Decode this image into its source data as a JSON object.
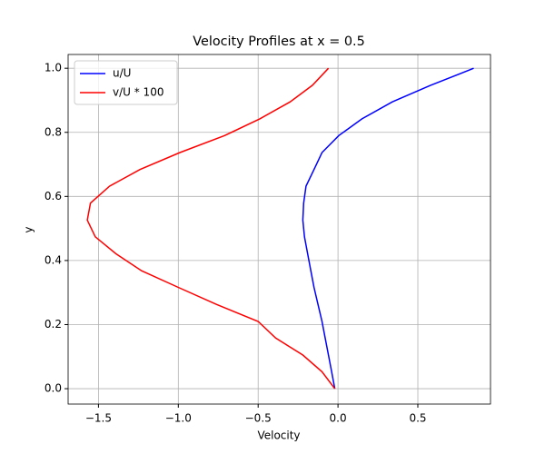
{
  "chart_data": {
    "type": "line",
    "title": "Velocity Profiles at x = 0.5",
    "x_label": "Velocity",
    "y_label": "y",
    "series": [
      {
        "name": "u/U",
        "color": "#0000ff",
        "x": [
          -0.02,
          -0.04,
          -0.06,
          -0.08,
          -0.1,
          -0.125,
          -0.15,
          -0.17,
          -0.19,
          -0.21,
          -0.22,
          -0.215,
          -0.2,
          -0.15,
          -0.1,
          0.005,
          0.15,
          0.34,
          0.58,
          0.85
        ],
        "values": [
          0,
          0.053,
          0.105,
          0.158,
          0.21,
          0.263,
          0.316,
          0.368,
          0.421,
          0.474,
          0.526,
          0.579,
          0.632,
          0.684,
          0.737,
          0.79,
          0.842,
          0.895,
          0.947,
          1.0
        ]
      },
      {
        "name": "v/U * 100",
        "color": "#ff0000",
        "x": [
          -0.02,
          -0.1,
          -0.22,
          -0.39,
          -0.5,
          -0.76,
          -1.0,
          -1.23,
          -1.39,
          -1.52,
          -1.57,
          -1.55,
          -1.43,
          -1.24,
          -0.99,
          -0.71,
          -0.49,
          -0.3,
          -0.16,
          -0.06
        ],
        "values": [
          0,
          0.053,
          0.105,
          0.158,
          0.21,
          0.263,
          0.316,
          0.368,
          0.421,
          0.474,
          0.526,
          0.579,
          0.632,
          0.684,
          0.737,
          0.79,
          0.842,
          0.895,
          0.947,
          1.0
        ]
      }
    ],
    "xlim": [
      -1.69,
      0.955
    ],
    "ylim": [
      -0.048,
      1.043
    ],
    "xticks": [
      {
        "value": -1.5,
        "label": "−1.5"
      },
      {
        "value": -1.0,
        "label": "−1.0"
      },
      {
        "value": -0.5,
        "label": "−0.5"
      },
      {
        "value": 0,
        "label": "0.0"
      },
      0.5
    ],
    "yticks": [
      {
        "value": 0,
        "label": "0.0"
      },
      0.2,
      0.4,
      0.6,
      0.8,
      {
        "value": 1,
        "label": "1.0"
      }
    ],
    "grid": true,
    "legend": "upper-left"
  }
}
